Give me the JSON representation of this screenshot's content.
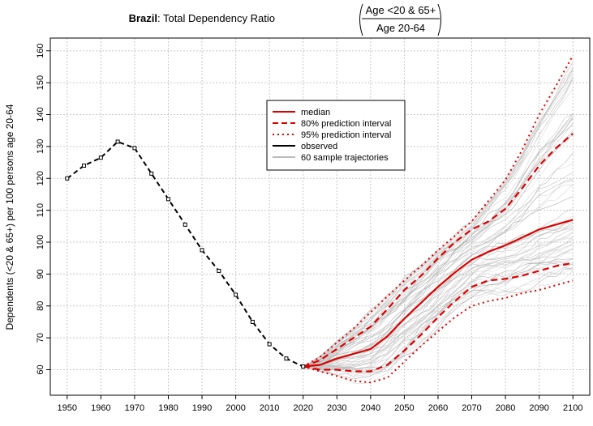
{
  "chart_data": {
    "type": "line",
    "title": {
      "country": "Brazil",
      "rest": ": Total Dependency Ratio",
      "numerator": "Age <20 & 65+",
      "denominator": "Age 20-64"
    },
    "xlabel": "",
    "ylabel": "Dependents (<20 & 65+) per 100 persons age 20-64",
    "xlim": [
      1945,
      2105
    ],
    "ylim": [
      52,
      164
    ],
    "x_ticks": [
      1950,
      1960,
      1970,
      1980,
      1990,
      2000,
      2010,
      2020,
      2030,
      2040,
      2050,
      2060,
      2070,
      2080,
      2090,
      2100
    ],
    "y_ticks": [
      60,
      70,
      80,
      90,
      100,
      110,
      120,
      130,
      140,
      150,
      160
    ],
    "grid": true,
    "legend_position": "top-center",
    "legend": [
      {
        "label": "median",
        "color": "#dd0000",
        "style": "solid"
      },
      {
        "label": "80% prediction interval",
        "color": "#dd0000",
        "style": "dashed"
      },
      {
        "label": "95% prediction interval",
        "color": "#dd0000",
        "style": "dotted"
      },
      {
        "label": "observed",
        "color": "#000000",
        "style": "solid"
      },
      {
        "label": "60 sample trajectories",
        "color": "#bbbbbb",
        "style": "solid"
      }
    ],
    "series": [
      {
        "name": "observed",
        "x": [
          1950,
          1955,
          1960,
          1965,
          1970,
          1975,
          1980,
          1985,
          1990,
          1995,
          2000,
          2005,
          2010,
          2015,
          2020
        ],
        "values": [
          120.0,
          124.0,
          126.5,
          131.5,
          129.5,
          121.5,
          113.5,
          105.5,
          97.5,
          91.0,
          83.5,
          75.0,
          68.0,
          63.5,
          61.0
        ]
      },
      {
        "name": "median",
        "x": [
          2020,
          2025,
          2030,
          2035,
          2040,
          2045,
          2050,
          2055,
          2060,
          2065,
          2070,
          2075,
          2080,
          2085,
          2090,
          2095,
          2100
        ],
        "values": [
          61.0,
          61.5,
          63.5,
          65.0,
          66.5,
          70.5,
          76.0,
          81.0,
          86.0,
          90.5,
          94.5,
          97.0,
          99.0,
          101.5,
          104.0,
          105.5,
          107.0
        ]
      },
      {
        "name": "80% lower",
        "x": [
          2020,
          2025,
          2030,
          2035,
          2040,
          2045,
          2050,
          2055,
          2060,
          2065,
          2070,
          2075,
          2080,
          2085,
          2090,
          2095,
          2100
        ],
        "values": [
          61.0,
          60.0,
          60.0,
          59.5,
          59.5,
          61.5,
          66.0,
          71.0,
          76.5,
          81.5,
          86.0,
          88.0,
          88.5,
          89.5,
          91.0,
          92.5,
          93.5
        ]
      },
      {
        "name": "80% upper",
        "x": [
          2020,
          2025,
          2030,
          2035,
          2040,
          2045,
          2050,
          2055,
          2060,
          2065,
          2070,
          2075,
          2080,
          2085,
          2090,
          2095,
          2100
        ],
        "values": [
          61.0,
          63.0,
          66.5,
          70.0,
          73.5,
          79.0,
          85.0,
          89.5,
          95.0,
          100.0,
          104.0,
          106.5,
          110.5,
          117.0,
          124.0,
          129.5,
          134.0
        ]
      },
      {
        "name": "95% lower",
        "x": [
          2020,
          2025,
          2030,
          2035,
          2040,
          2045,
          2050,
          2055,
          2060,
          2065,
          2070,
          2075,
          2080,
          2085,
          2090,
          2095,
          2100
        ],
        "values": [
          61.0,
          59.5,
          58.0,
          56.5,
          56.0,
          57.5,
          62.5,
          67.5,
          72.0,
          76.5,
          80.0,
          81.5,
          82.5,
          84.0,
          85.0,
          86.5,
          88.0
        ]
      },
      {
        "name": "95% upper",
        "x": [
          2020,
          2025,
          2030,
          2035,
          2040,
          2045,
          2050,
          2055,
          2060,
          2065,
          2070,
          2075,
          2080,
          2085,
          2090,
          2095,
          2100
        ],
        "values": [
          61.0,
          64.0,
          68.5,
          73.0,
          78.0,
          83.0,
          88.0,
          92.5,
          97.5,
          102.0,
          106.5,
          113.0,
          119.5,
          129.0,
          140.0,
          149.0,
          158.5
        ]
      }
    ]
  }
}
